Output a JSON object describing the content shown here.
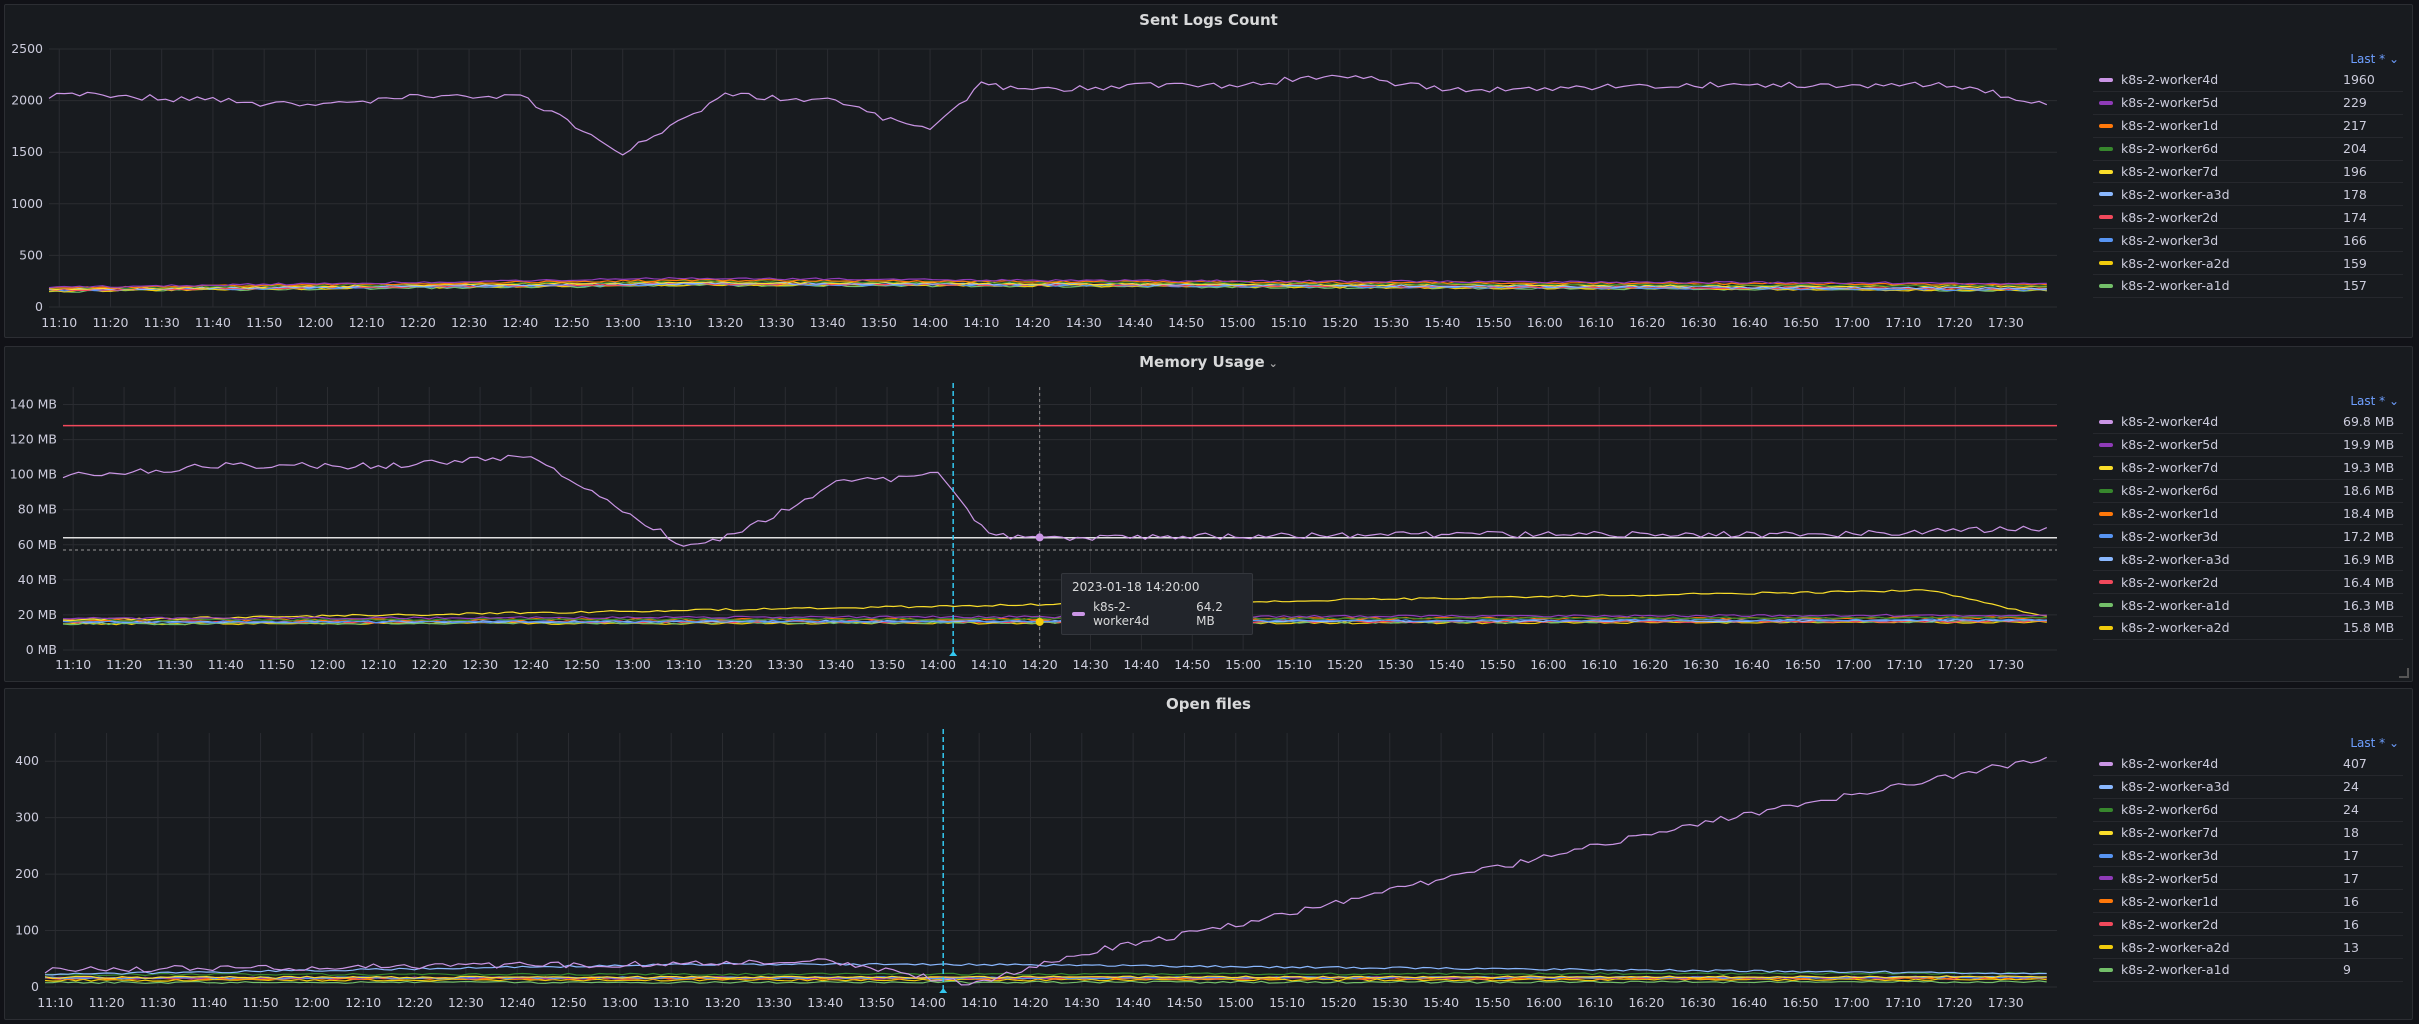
{
  "colors": {
    "k8s-2-worker4d": "#ca95e5",
    "k8s-2-worker5d": "#8f3bb8",
    "k8s-2-worker1d": "#ff780a",
    "k8s-2-worker6d": "#37872d",
    "k8s-2-worker7d": "#fade2a",
    "k8s-2-worker-a3d": "#8ab8ff",
    "k8s-2-worker2d": "#f2495c",
    "k8s-2-worker3d": "#5794f2",
    "k8s-2-worker-a2d": "#f2cc0c",
    "k8s-2-worker-a1d": "#73bf69",
    "threshold_red": "#f2495c",
    "threshold_white": "#e0e0e0",
    "marker_cyan": "#33c8f0"
  },
  "time_ticks": [
    "11:10",
    "11:20",
    "11:30",
    "11:40",
    "11:50",
    "12:00",
    "12:10",
    "12:20",
    "12:30",
    "12:40",
    "12:50",
    "13:00",
    "13:10",
    "13:20",
    "13:30",
    "13:40",
    "13:50",
    "14:00",
    "14:10",
    "14:20",
    "14:30",
    "14:40",
    "14:50",
    "15:00",
    "15:10",
    "15:20",
    "15:30",
    "15:40",
    "15:50",
    "16:00",
    "16:10",
    "16:20",
    "16:30",
    "16:40",
    "16:50",
    "17:00",
    "17:10",
    "17:20",
    "17:30"
  ],
  "panels": {
    "sent_logs": {
      "title": "Sent Logs Count",
      "legend_header": "Last * ⌄",
      "legend": [
        {
          "name": "k8s-2-worker4d",
          "value": "1960"
        },
        {
          "name": "k8s-2-worker5d",
          "value": "229"
        },
        {
          "name": "k8s-2-worker1d",
          "value": "217"
        },
        {
          "name": "k8s-2-worker6d",
          "value": "204"
        },
        {
          "name": "k8s-2-worker7d",
          "value": "196"
        },
        {
          "name": "k8s-2-worker-a3d",
          "value": "178"
        },
        {
          "name": "k8s-2-worker2d",
          "value": "174"
        },
        {
          "name": "k8s-2-worker3d",
          "value": "166"
        },
        {
          "name": "k8s-2-worker-a2d",
          "value": "159"
        },
        {
          "name": "k8s-2-worker-a1d",
          "value": "157"
        }
      ]
    },
    "memory": {
      "title": "Memory Usage",
      "legend_header": "Last * ⌄",
      "tooltip": {
        "time": "2023-01-18 14:20:00",
        "series": "k8s-2-worker4d",
        "value": "64.2 MB"
      },
      "legend": [
        {
          "name": "k8s-2-worker4d",
          "value": "69.8 MB"
        },
        {
          "name": "k8s-2-worker5d",
          "value": "19.9 MB"
        },
        {
          "name": "k8s-2-worker7d",
          "value": "19.3 MB"
        },
        {
          "name": "k8s-2-worker6d",
          "value": "18.6 MB"
        },
        {
          "name": "k8s-2-worker1d",
          "value": "18.4 MB"
        },
        {
          "name": "k8s-2-worker3d",
          "value": "17.2 MB"
        },
        {
          "name": "k8s-2-worker-a3d",
          "value": "16.9 MB"
        },
        {
          "name": "k8s-2-worker2d",
          "value": "16.4 MB"
        },
        {
          "name": "k8s-2-worker-a1d",
          "value": "16.3 MB"
        },
        {
          "name": "k8s-2-worker-a2d",
          "value": "15.8 MB"
        }
      ]
    },
    "open_files": {
      "title": "Open files",
      "legend_header": "Last * ⌄",
      "legend": [
        {
          "name": "k8s-2-worker4d",
          "value": "407"
        },
        {
          "name": "k8s-2-worker-a3d",
          "value": "24"
        },
        {
          "name": "k8s-2-worker6d",
          "value": "24"
        },
        {
          "name": "k8s-2-worker7d",
          "value": "18"
        },
        {
          "name": "k8s-2-worker3d",
          "value": "17"
        },
        {
          "name": "k8s-2-worker5d",
          "value": "17"
        },
        {
          "name": "k8s-2-worker1d",
          "value": "16"
        },
        {
          "name": "k8s-2-worker2d",
          "value": "16"
        },
        {
          "name": "k8s-2-worker-a2d",
          "value": "13"
        },
        {
          "name": "k8s-2-worker-a1d",
          "value": "9"
        }
      ]
    }
  },
  "chart_data": [
    {
      "type": "line",
      "title": "Sent Logs Count",
      "x_range": [
        "11:08",
        "17:40"
      ],
      "ylim": [
        0,
        2500
      ],
      "yticks": [
        "0",
        "500",
        "1000",
        "1500",
        "2000",
        "2500"
      ],
      "grid": true,
      "legend_placement": "right",
      "series": [
        {
          "name": "k8s-2-worker4d",
          "x": [
            "11:08",
            "11:20",
            "11:40",
            "12:00",
            "12:20",
            "12:40",
            "13:00",
            "13:20",
            "13:40",
            "14:00",
            "14:10",
            "14:20",
            "14:40",
            "15:00",
            "15:20",
            "15:40",
            "16:00",
            "16:20",
            "16:40",
            "17:00",
            "17:20",
            "17:38"
          ],
          "values": [
            2050,
            2050,
            2000,
            1950,
            2050,
            2050,
            1500,
            2050,
            2000,
            1700,
            2150,
            2100,
            2150,
            2150,
            2250,
            2100,
            2100,
            2150,
            2150,
            2150,
            2150,
            1960
          ]
        },
        {
          "name": "k8s-2-worker5d",
          "x": [
            "11:08",
            "13:15",
            "14:08",
            "17:38"
          ],
          "values": [
            190,
            280,
            260,
            229
          ]
        },
        {
          "name": "k8s-2-worker1d",
          "x": [
            "11:08",
            "13:15",
            "14:08",
            "17:38"
          ],
          "values": [
            185,
            260,
            250,
            217
          ]
        },
        {
          "name": "k8s-2-worker6d",
          "x": [
            "11:08",
            "13:15",
            "14:08",
            "17:38"
          ],
          "values": [
            180,
            250,
            240,
            204
          ]
        },
        {
          "name": "k8s-2-worker7d",
          "x": [
            "11:08",
            "13:15",
            "14:08",
            "17:38"
          ],
          "values": [
            175,
            240,
            230,
            196
          ]
        },
        {
          "name": "k8s-2-worker-a3d",
          "x": [
            "11:08",
            "13:15",
            "14:08",
            "17:38"
          ],
          "values": [
            170,
            230,
            225,
            178
          ]
        },
        {
          "name": "k8s-2-worker2d",
          "x": [
            "11:08",
            "13:15",
            "14:08",
            "17:38"
          ],
          "values": [
            165,
            225,
            220,
            174
          ]
        },
        {
          "name": "k8s-2-worker3d",
          "x": [
            "11:08",
            "13:15",
            "14:08",
            "17:38"
          ],
          "values": [
            160,
            220,
            215,
            166
          ]
        },
        {
          "name": "k8s-2-worker-a2d",
          "x": [
            "11:08",
            "13:15",
            "14:08",
            "17:38"
          ],
          "values": [
            155,
            215,
            210,
            159
          ]
        },
        {
          "name": "k8s-2-worker-a1d",
          "x": [
            "11:08",
            "13:15",
            "14:08",
            "17:38"
          ],
          "values": [
            150,
            210,
            205,
            157
          ]
        }
      ]
    },
    {
      "type": "line",
      "title": "Memory Usage",
      "x_range": [
        "11:08",
        "17:40"
      ],
      "ylim": [
        0,
        150
      ],
      "unit": "MB",
      "yticks": [
        "0 MB",
        "20 MB",
        "40 MB",
        "60 MB",
        "80 MB",
        "100 MB",
        "120 MB",
        "140 MB"
      ],
      "grid": true,
      "legend_placement": "right",
      "thresholds": [
        128,
        64
      ],
      "series": [
        {
          "name": "k8s-2-worker4d",
          "x": [
            "11:08",
            "11:40",
            "12:10",
            "12:40",
            "13:10",
            "13:20",
            "13:40",
            "14:00",
            "14:10",
            "14:20",
            "15:00",
            "16:00",
            "17:00",
            "17:15",
            "17:38"
          ],
          "values": [
            100,
            105,
            105,
            110,
            60,
            65,
            95,
            100,
            65,
            64,
            65,
            66,
            66,
            68,
            69.8
          ]
        },
        {
          "name": "k8s-2-worker5d",
          "x": [
            "11:08",
            "17:38"
          ],
          "values": [
            18,
            19.9
          ]
        },
        {
          "name": "k8s-2-worker7d",
          "x": [
            "11:08",
            "17:15",
            "17:38"
          ],
          "values": [
            17,
            34,
            19.3
          ]
        },
        {
          "name": "k8s-2-worker6d",
          "x": [
            "11:08",
            "17:38"
          ],
          "values": [
            17,
            18.6
          ]
        },
        {
          "name": "k8s-2-worker1d",
          "x": [
            "11:08",
            "17:38"
          ],
          "values": [
            17,
            18.4
          ]
        },
        {
          "name": "k8s-2-worker3d",
          "x": [
            "11:08",
            "17:38"
          ],
          "values": [
            16,
            17.2
          ]
        },
        {
          "name": "k8s-2-worker-a3d",
          "x": [
            "11:08",
            "17:38"
          ],
          "values": [
            16,
            16.9
          ]
        },
        {
          "name": "k8s-2-worker2d",
          "x": [
            "11:08",
            "17:38"
          ],
          "values": [
            16,
            16.4
          ]
        },
        {
          "name": "k8s-2-worker-a1d",
          "x": [
            "11:08",
            "17:38"
          ],
          "values": [
            15,
            16.3
          ]
        },
        {
          "name": "k8s-2-worker-a2d",
          "x": [
            "11:08",
            "17:38"
          ],
          "values": [
            15,
            15.8
          ]
        }
      ]
    },
    {
      "type": "line",
      "title": "Open files",
      "x_range": [
        "11:08",
        "17:40"
      ],
      "ylim": [
        0,
        450
      ],
      "yticks": [
        "0",
        "100",
        "200",
        "300",
        "400"
      ],
      "grid": true,
      "legend_placement": "right",
      "series": [
        {
          "name": "k8s-2-worker4d",
          "x": [
            "11:08",
            "12:00",
            "13:00",
            "13:40",
            "14:08",
            "14:30",
            "15:00",
            "15:30",
            "16:00",
            "16:30",
            "17:00",
            "17:38"
          ],
          "values": [
            30,
            35,
            40,
            45,
            5,
            60,
            110,
            170,
            230,
            290,
            340,
            407
          ]
        },
        {
          "name": "k8s-2-worker-a3d",
          "x": [
            "11:08",
            "13:14",
            "14:08",
            "17:38"
          ],
          "values": [
            22,
            40,
            40,
            24
          ]
        },
        {
          "name": "k8s-2-worker6d",
          "x": [
            "11:08",
            "17:38"
          ],
          "values": [
            22,
            24
          ]
        },
        {
          "name": "k8s-2-worker7d",
          "x": [
            "11:08",
            "17:38"
          ],
          "values": [
            17,
            18
          ]
        },
        {
          "name": "k8s-2-worker3d",
          "x": [
            "11:08",
            "17:38"
          ],
          "values": [
            16,
            17
          ]
        },
        {
          "name": "k8s-2-worker5d",
          "x": [
            "11:08",
            "17:38"
          ],
          "values": [
            16,
            17
          ]
        },
        {
          "name": "k8s-2-worker1d",
          "x": [
            "11:08",
            "17:38"
          ],
          "values": [
            15,
            16
          ]
        },
        {
          "name": "k8s-2-worker2d",
          "x": [
            "11:08",
            "17:38"
          ],
          "values": [
            15,
            16
          ]
        },
        {
          "name": "k8s-2-worker-a2d",
          "x": [
            "11:08",
            "17:38"
          ],
          "values": [
            12,
            13
          ]
        },
        {
          "name": "k8s-2-worker-a1d",
          "x": [
            "11:08",
            "17:38"
          ],
          "values": [
            8,
            9
          ]
        }
      ]
    }
  ]
}
